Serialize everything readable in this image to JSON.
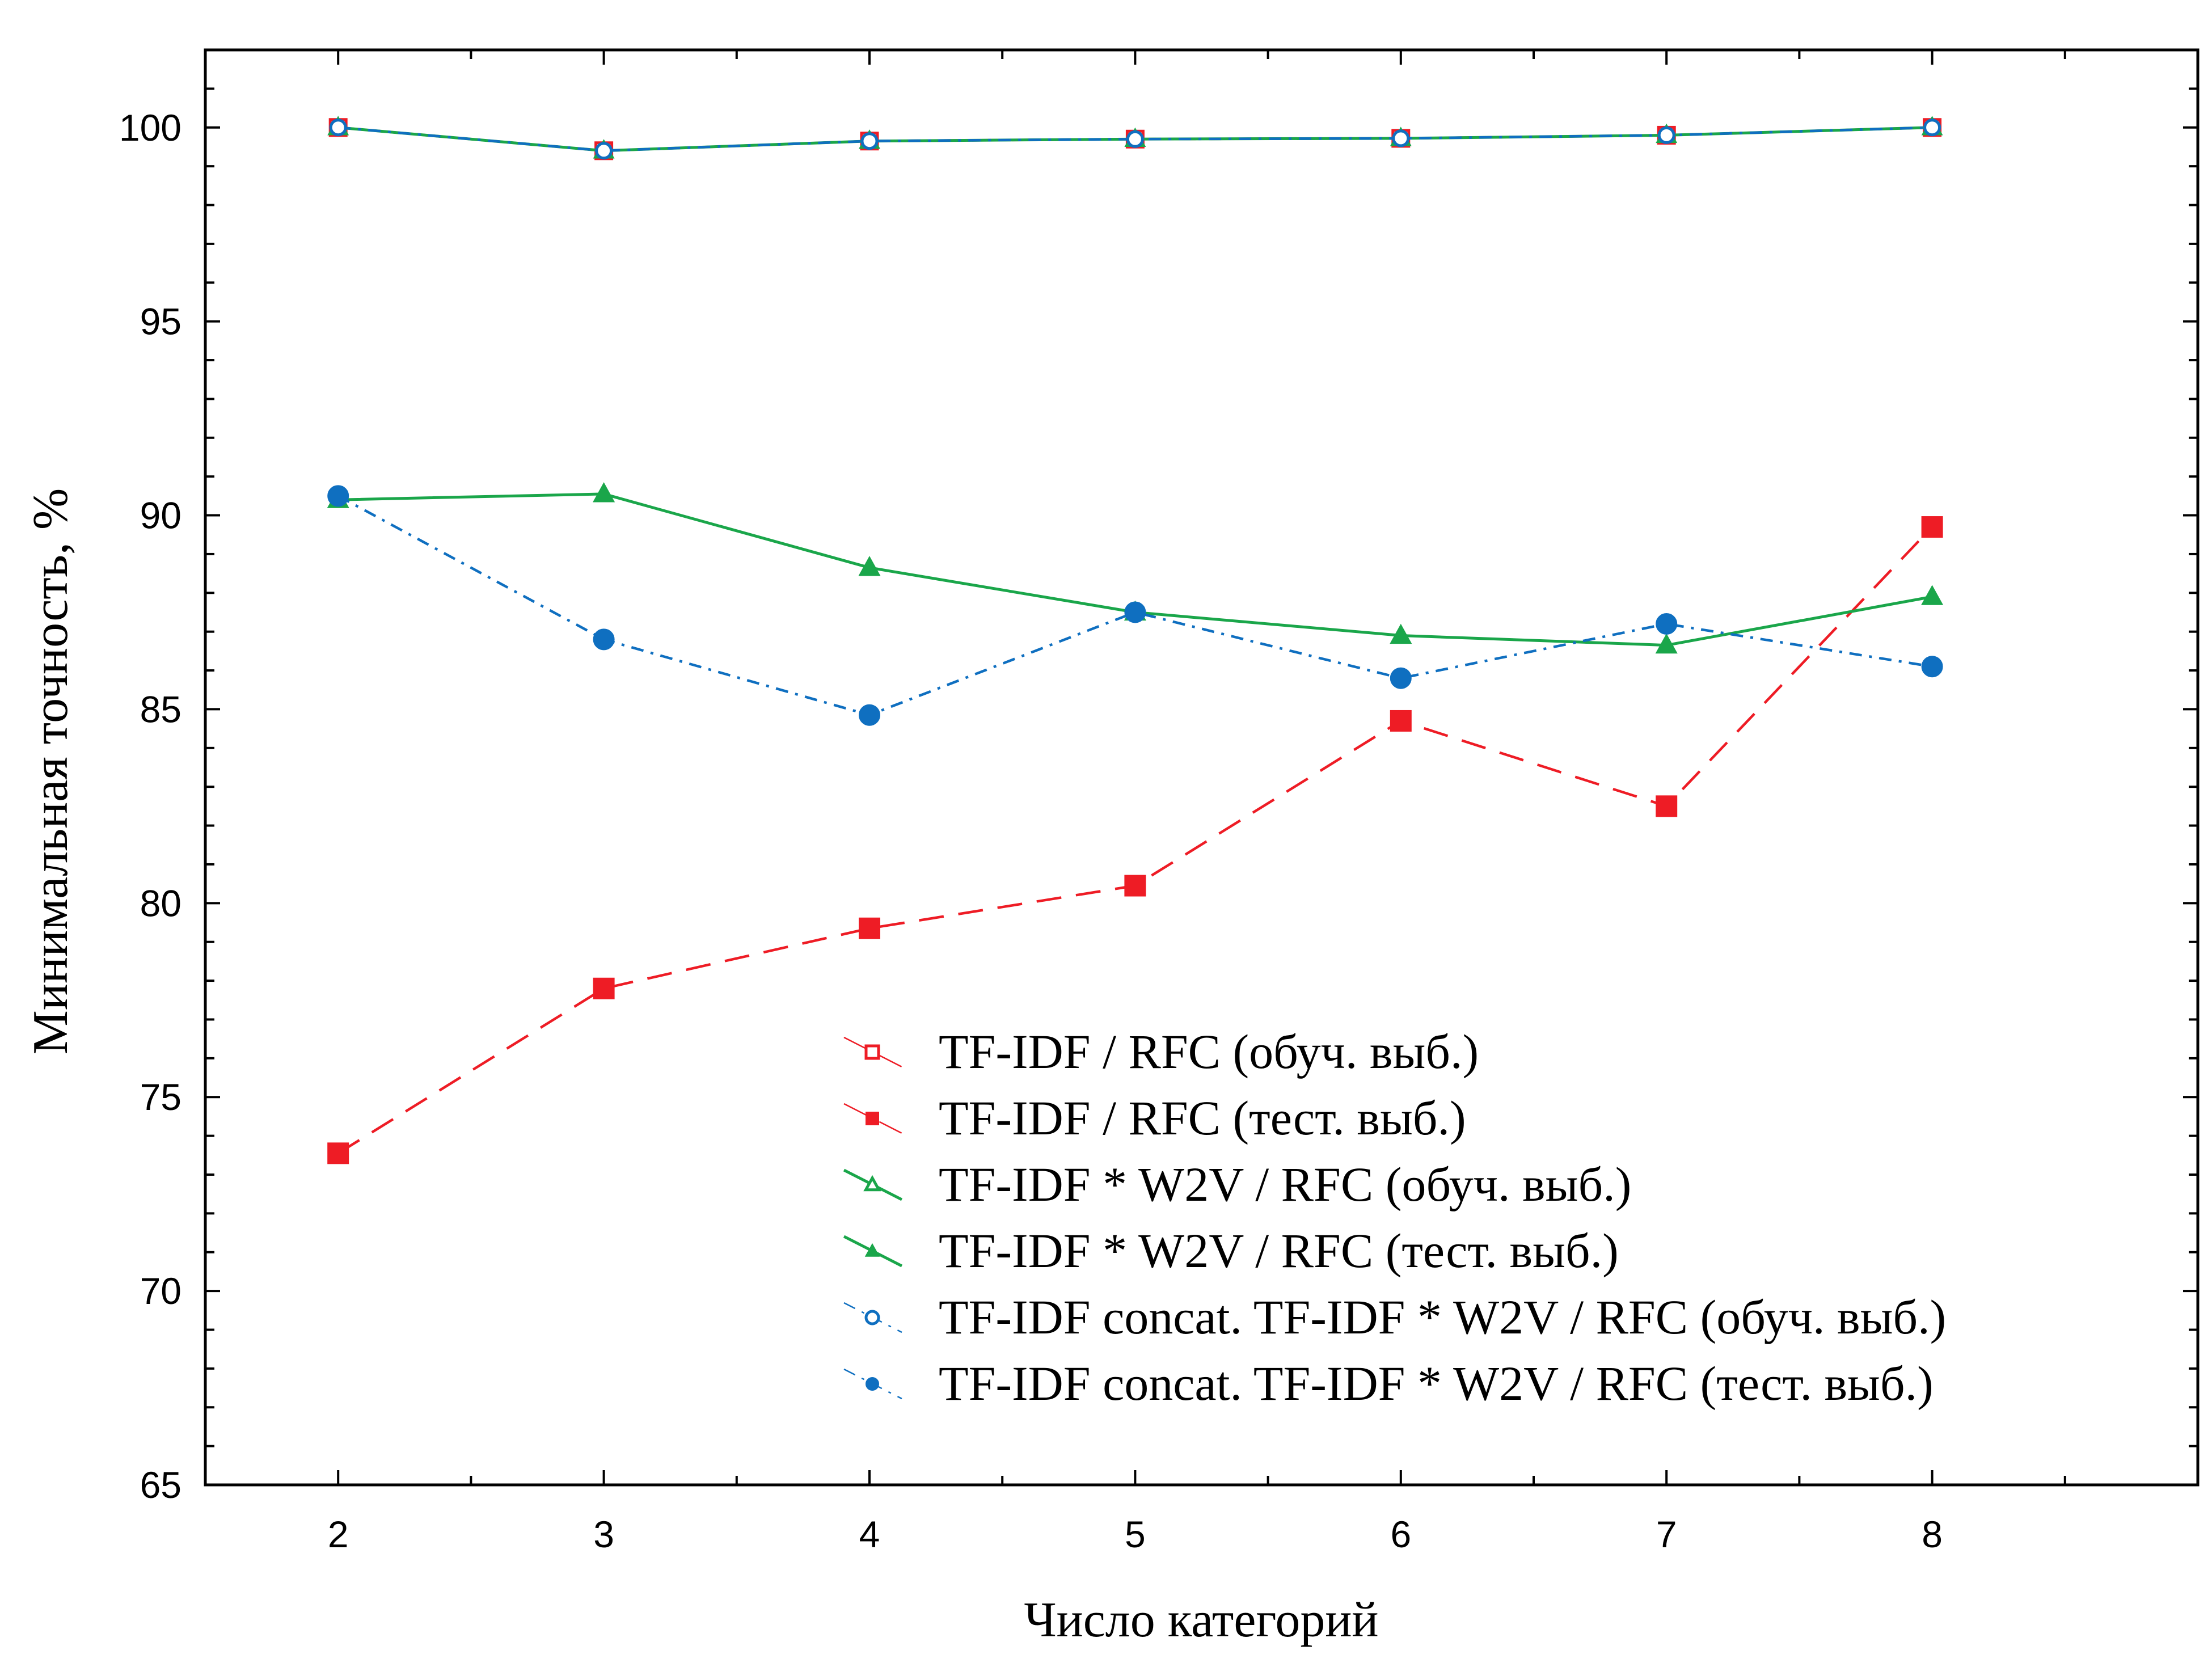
{
  "chart_data": {
    "type": "line",
    "title": "",
    "xlabel": "Число категорий",
    "ylabel": "Минимальная точность, %",
    "xlim": [
      1.5,
      9
    ],
    "ylim": [
      65,
      102
    ],
    "x_ticks": [
      2,
      3,
      4,
      5,
      6,
      7,
      8
    ],
    "y_ticks": [
      65,
      70,
      75,
      80,
      85,
      90,
      95,
      100
    ],
    "grid": false,
    "legend_position": "bottom-center",
    "x": [
      2,
      3,
      4,
      5,
      6,
      7,
      8
    ],
    "series": [
      {
        "name": "TF-IDF / RFC (обуч. выб.)",
        "values": [
          100.0,
          99.4,
          99.65,
          99.7,
          99.72,
          99.8,
          100.0
        ],
        "color": "#ee1c25",
        "marker": "square-open",
        "line": "dash"
      },
      {
        "name": "TF-IDF / RFC (тест. выб.)",
        "values": [
          73.55,
          77.8,
          79.35,
          80.45,
          84.7,
          82.5,
          89.7
        ],
        "color": "#ee1c25",
        "marker": "square",
        "line": "dash"
      },
      {
        "name": "TF-IDF * W2V / RFC (обуч. выб.)",
        "values": [
          100.0,
          99.4,
          99.65,
          99.7,
          99.72,
          99.8,
          100.0
        ],
        "color": "#1aa64a",
        "marker": "triangle-open",
        "line": "solid"
      },
      {
        "name": "TF-IDF * W2V / RFC (тест. выб.)",
        "values": [
          90.4,
          90.55,
          88.65,
          87.5,
          86.9,
          86.65,
          87.9
        ],
        "color": "#1aa64a",
        "marker": "triangle",
        "line": "solid"
      },
      {
        "name": "TF-IDF concat. TF-IDF * W2V / RFC (обуч. выб.)",
        "values": [
          100.0,
          99.4,
          99.65,
          99.7,
          99.72,
          99.8,
          100.0
        ],
        "color": "#0f6fc0",
        "marker": "circle-open",
        "line": "dashdot"
      },
      {
        "name": "TF-IDF concat. TF-IDF * W2V / RFC (тест. выб.)",
        "values": [
          90.5,
          86.8,
          84.85,
          87.5,
          85.8,
          87.2,
          86.1
        ],
        "color": "#0f6fc0",
        "marker": "circle",
        "line": "dashdot"
      }
    ]
  }
}
